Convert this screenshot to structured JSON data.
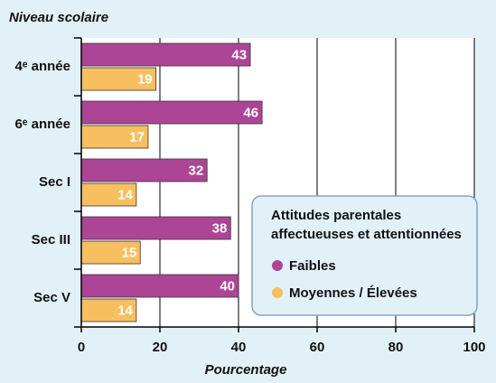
{
  "chart_data": {
    "type": "hbar",
    "y_axis_title": "Niveau scolaire",
    "x_axis_title": "Pourcentage",
    "categories": [
      "4ᵉ année",
      "6ᵉ année",
      "Sec I",
      "Sec III",
      "Sec V"
    ],
    "series": [
      {
        "name": "Faibles",
        "color": "#ad4596",
        "values": [
          43,
          46,
          32,
          38,
          40
        ]
      },
      {
        "name": "Moyennes / Élevées",
        "color": "#f8bf60",
        "values": [
          19,
          17,
          14,
          15,
          14
        ]
      }
    ],
    "legend_title": [
      "Attitudes parentales",
      "affectueuses et attentionnées"
    ],
    "xlim": [
      0,
      100
    ],
    "xticks": [
      0,
      20,
      40,
      60,
      80,
      100
    ],
    "grid": true
  }
}
